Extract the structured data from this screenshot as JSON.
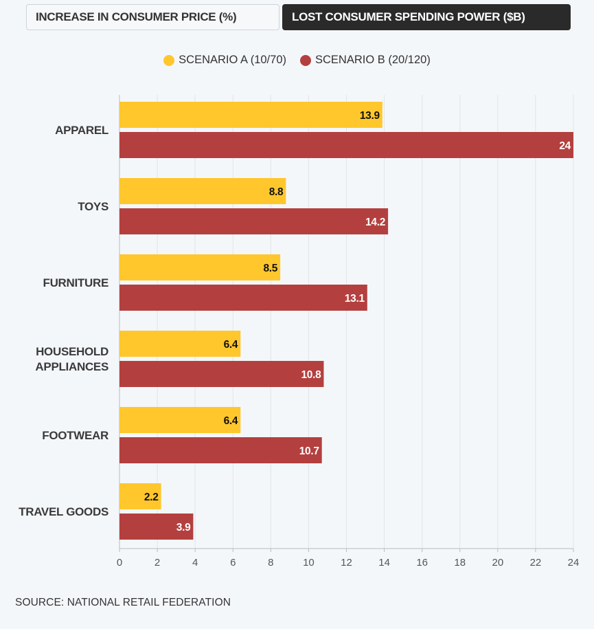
{
  "tabs": [
    {
      "label": "INCREASE IN CONSUMER PRICE (%)",
      "active": false
    },
    {
      "label": "LOST CONSUMER SPENDING POWER ($B)",
      "active": true
    }
  ],
  "legend": [
    {
      "label": "SCENARIO A (10/70)",
      "color": "#ffc72c"
    },
    {
      "label": "SCENARIO B (20/120)",
      "color": "#b3403f"
    }
  ],
  "source": "SOURCE: NATIONAL RETAIL FEDERATION",
  "chart_data": {
    "type": "bar",
    "orientation": "horizontal",
    "categories": [
      [
        "APPAREL"
      ],
      [
        "TOYS"
      ],
      [
        "FURNITURE"
      ],
      [
        "HOUSEHOLD",
        "APPLIANCES"
      ],
      [
        "FOOTWEAR"
      ],
      [
        "TRAVEL GOODS"
      ]
    ],
    "series": [
      {
        "name": "SCENARIO A (10/70)",
        "color": "#ffc72c",
        "label_color": "#111111",
        "values": [
          13.9,
          8.8,
          8.5,
          6.4,
          6.4,
          2.2
        ]
      },
      {
        "name": "SCENARIO B (20/120)",
        "color": "#b3403f",
        "label_color": "#ffffff",
        "values": [
          24,
          14.2,
          13.1,
          10.8,
          10.7,
          3.9
        ]
      }
    ],
    "xlim": [
      0,
      24
    ],
    "xticks": [
      0,
      2,
      4,
      6,
      8,
      10,
      12,
      14,
      16,
      18,
      20,
      22,
      24
    ],
    "grid": true
  }
}
